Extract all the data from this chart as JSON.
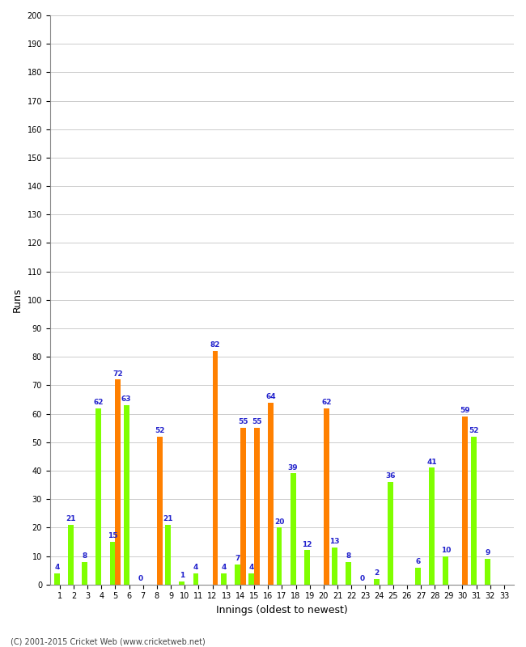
{
  "xlabel": "Innings (oldest to newest)",
  "ylabel": "Runs",
  "ylim": [
    0,
    200
  ],
  "ytick_step": 10,
  "n_innings": 33,
  "green_values": [
    4,
    21,
    8,
    62,
    15,
    63,
    0,
    0,
    21,
    1,
    4,
    0,
    4,
    7,
    4,
    0,
    20,
    39,
    12,
    0,
    13,
    8,
    0,
    2,
    36,
    0,
    6,
    41,
    10,
    0,
    52,
    9,
    0
  ],
  "orange_values": [
    0,
    0,
    0,
    0,
    72,
    0,
    0,
    52,
    0,
    0,
    0,
    82,
    0,
    55,
    55,
    64,
    0,
    0,
    0,
    62,
    0,
    0,
    0,
    0,
    0,
    0,
    0,
    0,
    0,
    59,
    0,
    0,
    0
  ],
  "green_labels": [
    "4",
    "21",
    "8",
    "62",
    "15",
    "63",
    "0",
    "",
    "21",
    "1",
    "4",
    "",
    "4",
    "7",
    "4",
    "",
    "20",
    "39",
    "12",
    "",
    "13",
    "8",
    "0",
    "2",
    "36",
    "",
    "6",
    "41",
    "10",
    "",
    "52",
    "9",
    ""
  ],
  "orange_labels": [
    "",
    "",
    "",
    "",
    "72",
    "",
    "",
    "52",
    "",
    "",
    "",
    "82",
    "",
    "55",
    "55",
    "64",
    "",
    "",
    "",
    "62",
    "",
    "",
    "",
    "",
    "",
    "",
    "",
    "",
    "",
    "59",
    "",
    "",
    ""
  ],
  "bar_green_color": "#80ff00",
  "bar_orange_color": "#ff8000",
  "label_color": "#2222cc",
  "background_color": "#ffffff",
  "grid_color": "#cccccc",
  "footer": "(C) 2001-2015 Cricket Web (www.cricketweb.net)",
  "bar_width": 0.4,
  "label_fontsize": 6.5,
  "tick_fontsize": 7,
  "axis_label_fontsize": 9
}
